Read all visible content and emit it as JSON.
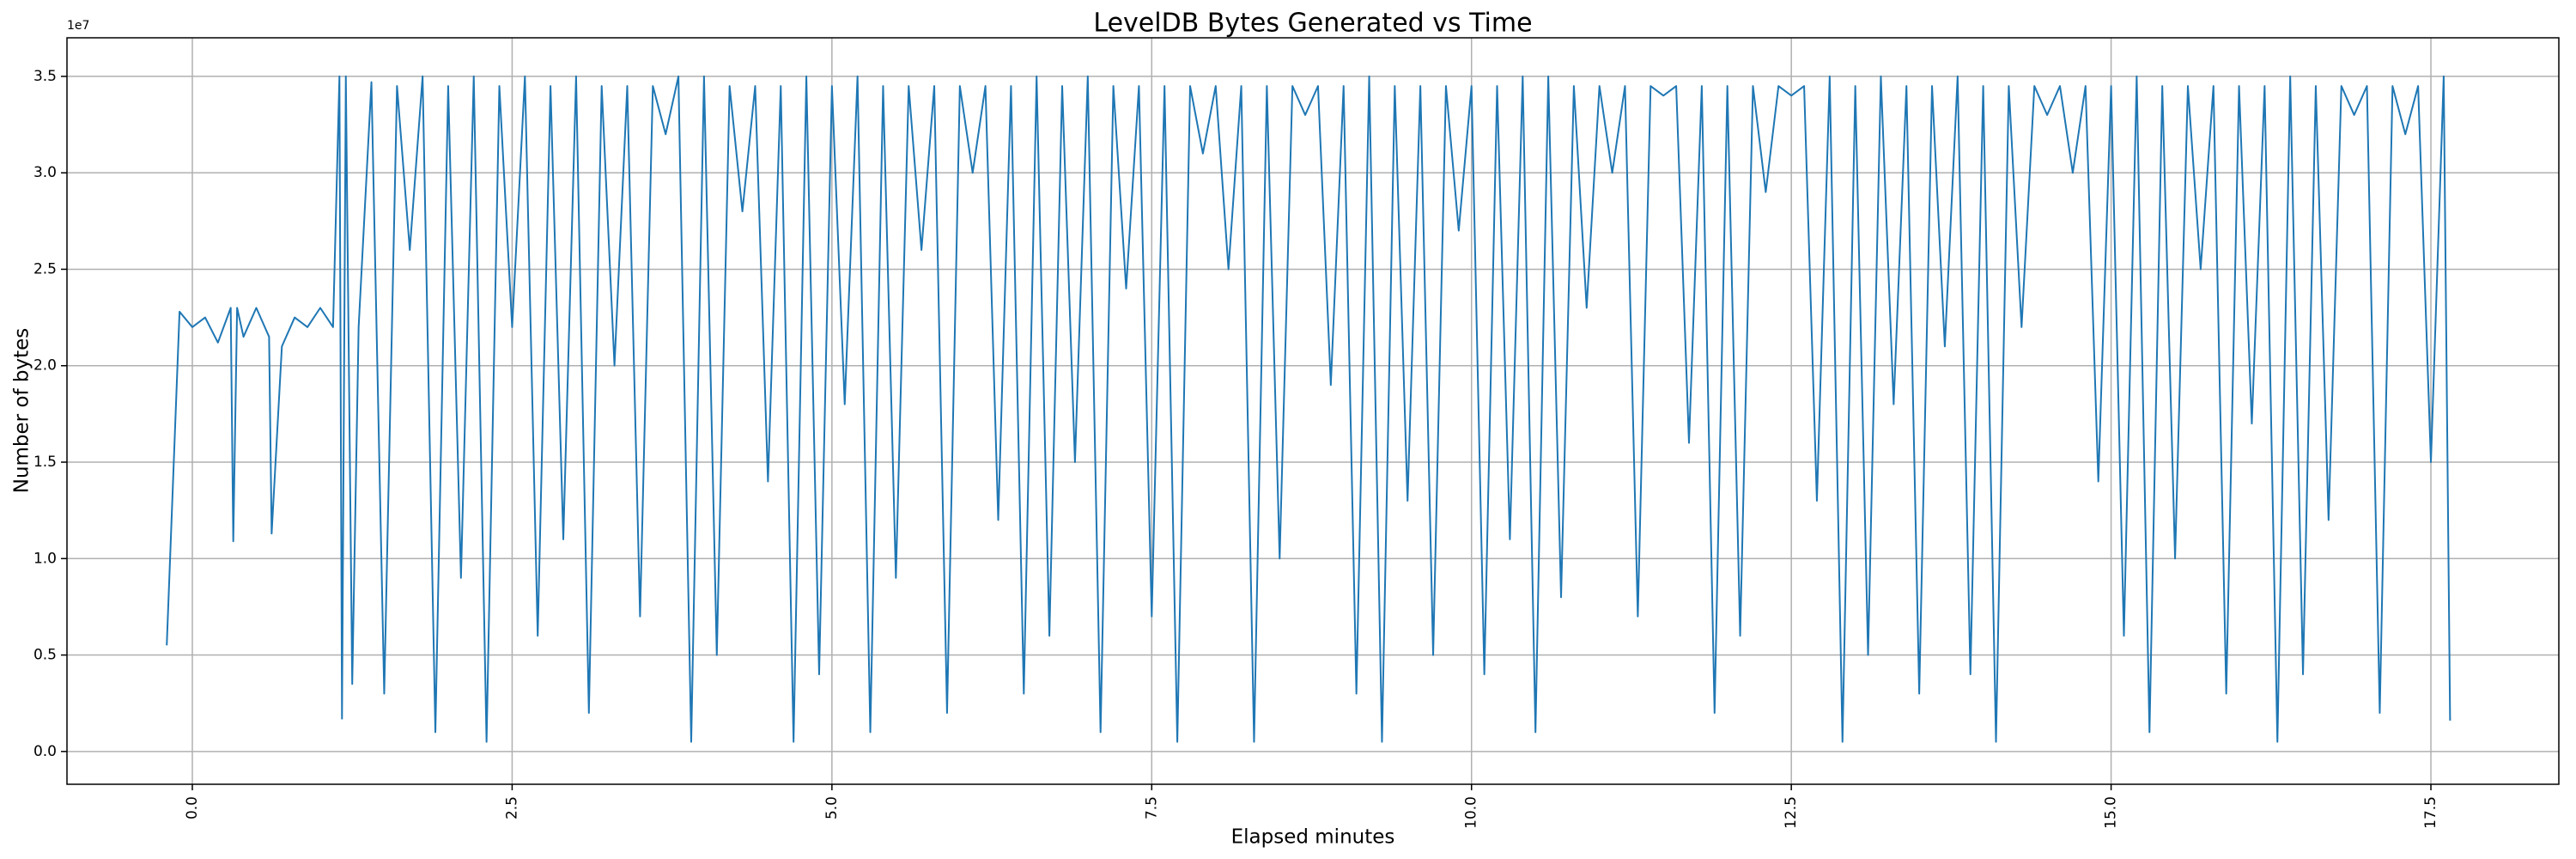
{
  "chart_data": {
    "type": "line",
    "title": "LevelDB Bytes Generated vs Time",
    "x_label": "Elapsed minutes",
    "y_label": "Number of bytes",
    "y_offset_label": "1e7",
    "grid": true,
    "xlim": [
      -0.98,
      18.5
    ],
    "ylim": [
      -0.17,
      3.7
    ],
    "xticks": [
      {
        "value": 0,
        "label": "0.0"
      },
      2.5,
      {
        "value": 5,
        "label": "5.0"
      },
      7.5,
      {
        "value": 10,
        "label": "10.0"
      },
      12.5,
      {
        "value": 15,
        "label": "15.0"
      },
      17.5
    ],
    "yticks": [
      {
        "value": 0,
        "label": "0.0"
      },
      0.5,
      {
        "value": 1,
        "label": "1.0"
      },
      1.5,
      {
        "value": 2,
        "label": "2.0"
      },
      2.5,
      {
        "value": 3,
        "label": "3.0"
      },
      3.5
    ],
    "x": [
      -0.2,
      -0.1,
      0.0,
      0.1,
      0.2,
      0.3,
      0.32,
      0.35,
      0.4,
      0.5,
      0.6,
      0.62,
      0.7,
      0.8,
      0.9,
      1.0,
      1.1,
      1.15,
      1.17,
      1.2,
      1.25,
      1.3,
      1.4,
      1.5,
      1.6,
      1.7,
      1.8,
      1.9,
      2.0,
      2.1,
      2.2,
      2.3,
      2.4,
      2.5,
      2.6,
      2.7,
      2.8,
      2.9,
      3.0,
      3.1,
      3.2,
      3.3,
      3.4,
      3.5,
      3.6,
      3.7,
      3.8,
      3.9,
      4.0,
      4.1,
      4.2,
      4.3,
      4.4,
      4.5,
      4.6,
      4.7,
      4.8,
      4.9,
      5.0,
      5.1,
      5.2,
      5.3,
      5.4,
      5.5,
      5.6,
      5.7,
      5.8,
      5.9,
      6.0,
      6.1,
      6.2,
      6.3,
      6.4,
      6.5,
      6.6,
      6.7,
      6.8,
      6.9,
      7.0,
      7.1,
      7.2,
      7.3,
      7.4,
      7.5,
      7.6,
      7.7,
      7.8,
      7.9,
      8.0,
      8.1,
      8.2,
      8.3,
      8.4,
      8.5,
      8.6,
      8.7,
      8.8,
      8.9,
      9.0,
      9.1,
      9.2,
      9.3,
      9.4,
      9.5,
      9.6,
      9.7,
      9.8,
      9.9,
      10.0,
      10.1,
      10.2,
      10.3,
      10.4,
      10.5,
      10.6,
      10.7,
      10.8,
      10.9,
      11.0,
      11.1,
      11.2,
      11.3,
      11.4,
      11.5,
      11.6,
      11.7,
      11.8,
      11.9,
      12.0,
      12.1,
      12.2,
      12.3,
      12.4,
      12.5,
      12.6,
      12.7,
      12.8,
      12.9,
      13.0,
      13.1,
      13.2,
      13.3,
      13.4,
      13.5,
      13.6,
      13.7,
      13.8,
      13.9,
      14.0,
      14.1,
      14.2,
      14.3,
      14.4,
      14.5,
      14.6,
      14.7,
      14.8,
      14.9,
      15.0,
      15.1,
      15.2,
      15.3,
      15.4,
      15.5,
      15.6,
      15.7,
      15.8,
      15.9,
      16.0,
      16.1,
      16.2,
      16.3,
      16.4,
      16.5,
      16.6,
      16.7,
      16.8,
      16.9,
      17.0,
      17.1,
      17.2,
      17.3,
      17.4,
      17.5,
      17.6,
      17.65
    ],
    "series": [
      {
        "color": "#1f77b4",
        "values": [
          0.55,
          2.28,
          2.2,
          2.25,
          2.12,
          2.3,
          1.09,
          2.3,
          2.15,
          2.3,
          2.15,
          1.13,
          2.1,
          2.25,
          2.2,
          2.3,
          2.2,
          3.5,
          0.17,
          3.5,
          0.35,
          2.2,
          3.47,
          0.3,
          3.45,
          2.6,
          3.5,
          0.1,
          3.45,
          0.9,
          3.5,
          0.05,
          3.45,
          2.2,
          3.5,
          0.6,
          3.45,
          1.1,
          3.5,
          0.2,
          3.45,
          2.0,
          3.45,
          0.7,
          3.45,
          3.2,
          3.5,
          0.05,
          3.5,
          0.5,
          3.45,
          2.8,
          3.45,
          1.4,
          3.45,
          0.05,
          3.5,
          0.4,
          3.45,
          1.8,
          3.5,
          0.1,
          3.45,
          0.9,
          3.45,
          2.6,
          3.45,
          0.2,
          3.45,
          3.0,
          3.45,
          1.2,
          3.45,
          0.3,
          3.5,
          0.6,
          3.45,
          1.5,
          3.5,
          0.1,
          3.45,
          2.4,
          3.45,
          0.7,
          3.45,
          0.05,
          3.45,
          3.1,
          3.45,
          2.5,
          3.45,
          0.05,
          3.45,
          1.0,
          3.45,
          3.3,
          3.45,
          1.9,
          3.45,
          0.3,
          3.5,
          0.05,
          3.45,
          1.3,
          3.45,
          0.5,
          3.45,
          2.7,
          3.45,
          0.4,
          3.45,
          1.1,
          3.5,
          0.1,
          3.5,
          0.8,
          3.45,
          2.3,
          3.45,
          3.0,
          3.45,
          0.7,
          3.45,
          3.4,
          3.45,
          1.6,
          3.45,
          0.2,
          3.45,
          0.6,
          3.45,
          2.9,
          3.45,
          3.4,
          3.45,
          1.3,
          3.5,
          0.05,
          3.45,
          0.5,
          3.5,
          1.8,
          3.45,
          0.3,
          3.45,
          2.1,
          3.5,
          0.4,
          3.45,
          0.05,
          3.45,
          2.2,
          3.45,
          3.3,
          3.45,
          3.0,
          3.45,
          1.4,
          3.45,
          0.6,
          3.5,
          0.1,
          3.45,
          1.0,
          3.45,
          2.5,
          3.45,
          0.3,
          3.45,
          1.7,
          3.45,
          0.05,
          3.5,
          0.4,
          3.45,
          1.2,
          3.45,
          3.3,
          3.45,
          0.2,
          3.45,
          3.2,
          3.45,
          1.5,
          3.5,
          0.16
        ]
      }
    ]
  }
}
